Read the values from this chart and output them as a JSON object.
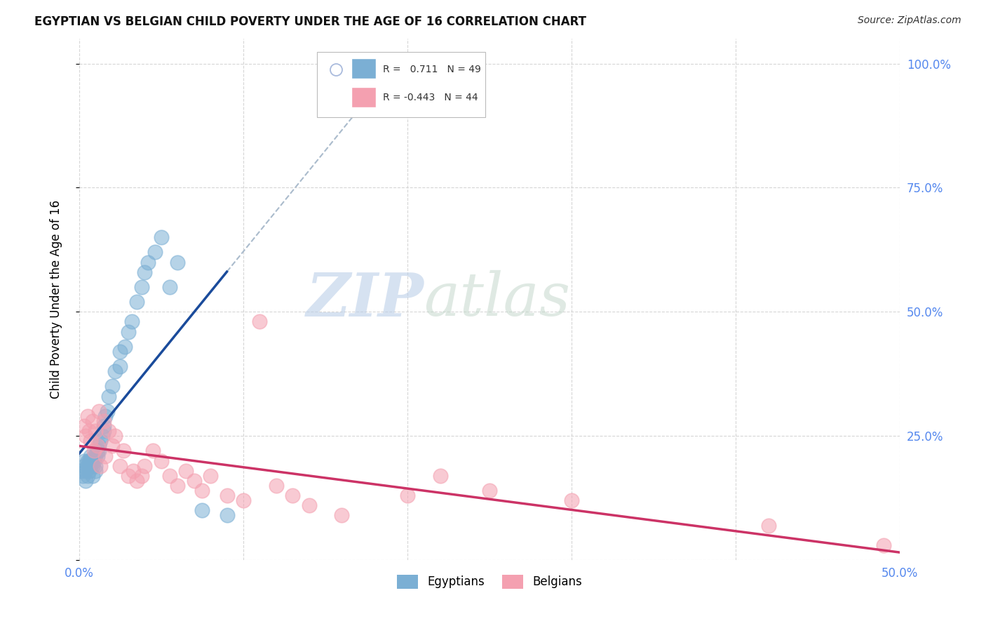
{
  "title": "EGYPTIAN VS BELGIAN CHILD POVERTY UNDER THE AGE OF 16 CORRELATION CHART",
  "source": "Source: ZipAtlas.com",
  "ylabel": "Child Poverty Under the Age of 16",
  "xlim": [
    0.0,
    0.5
  ],
  "ylim": [
    0.0,
    1.05
  ],
  "xticks": [
    0.0,
    0.1,
    0.2,
    0.3,
    0.4,
    0.5
  ],
  "xticklabels": [
    "0.0%",
    "",
    "",
    "",
    "",
    "50.0%"
  ],
  "yticks": [
    0.0,
    0.25,
    0.5,
    0.75,
    1.0
  ],
  "yticklabels_right": [
    "",
    "25.0%",
    "50.0%",
    "75.0%",
    "100.0%"
  ],
  "egyptian_color": "#7BAFD4",
  "belgian_color": "#F4A0B0",
  "egyptian_line_color": "#1A4B9B",
  "belgian_line_color": "#CC3366",
  "r_egyptian": 0.711,
  "n_egyptian": 49,
  "r_belgian": -0.443,
  "n_belgian": 44,
  "background_color": "#FFFFFF",
  "grid_color": "#CCCCCC",
  "tick_color": "#5588EE",
  "watermark_zip_color": "#BFCFE8",
  "watermark_atlas_color": "#C8D8D0",
  "egyptian_x": [
    0.001,
    0.002,
    0.003,
    0.003,
    0.004,
    0.004,
    0.005,
    0.005,
    0.005,
    0.006,
    0.006,
    0.007,
    0.007,
    0.007,
    0.008,
    0.008,
    0.009,
    0.009,
    0.01,
    0.01,
    0.01,
    0.011,
    0.011,
    0.012,
    0.012,
    0.013,
    0.014,
    0.015,
    0.015,
    0.016,
    0.017,
    0.018,
    0.02,
    0.022,
    0.025,
    0.025,
    0.028,
    0.03,
    0.032,
    0.035,
    0.038,
    0.04,
    0.042,
    0.046,
    0.05,
    0.055,
    0.06,
    0.075,
    0.09
  ],
  "egyptian_y": [
    0.18,
    0.17,
    0.19,
    0.2,
    0.18,
    0.16,
    0.2,
    0.19,
    0.17,
    0.2,
    0.18,
    0.21,
    0.19,
    0.2,
    0.19,
    0.17,
    0.21,
    0.2,
    0.21,
    0.19,
    0.18,
    0.22,
    0.21,
    0.23,
    0.22,
    0.24,
    0.25,
    0.26,
    0.27,
    0.29,
    0.3,
    0.33,
    0.35,
    0.38,
    0.39,
    0.42,
    0.43,
    0.46,
    0.48,
    0.52,
    0.55,
    0.58,
    0.6,
    0.62,
    0.65,
    0.55,
    0.6,
    0.1,
    0.09
  ],
  "belgian_x": [
    0.003,
    0.004,
    0.005,
    0.006,
    0.007,
    0.008,
    0.009,
    0.01,
    0.011,
    0.012,
    0.013,
    0.015,
    0.016,
    0.018,
    0.02,
    0.022,
    0.025,
    0.027,
    0.03,
    0.033,
    0.035,
    0.038,
    0.04,
    0.045,
    0.05,
    0.055,
    0.06,
    0.065,
    0.07,
    0.075,
    0.08,
    0.09,
    0.1,
    0.11,
    0.12,
    0.13,
    0.14,
    0.16,
    0.2,
    0.22,
    0.25,
    0.3,
    0.49,
    0.42
  ],
  "belgian_y": [
    0.27,
    0.25,
    0.29,
    0.26,
    0.24,
    0.28,
    0.22,
    0.26,
    0.23,
    0.3,
    0.19,
    0.28,
    0.21,
    0.26,
    0.23,
    0.25,
    0.19,
    0.22,
    0.17,
    0.18,
    0.16,
    0.17,
    0.19,
    0.22,
    0.2,
    0.17,
    0.15,
    0.18,
    0.16,
    0.14,
    0.17,
    0.13,
    0.12,
    0.48,
    0.15,
    0.13,
    0.11,
    0.09,
    0.13,
    0.17,
    0.14,
    0.12,
    0.03,
    0.07
  ]
}
